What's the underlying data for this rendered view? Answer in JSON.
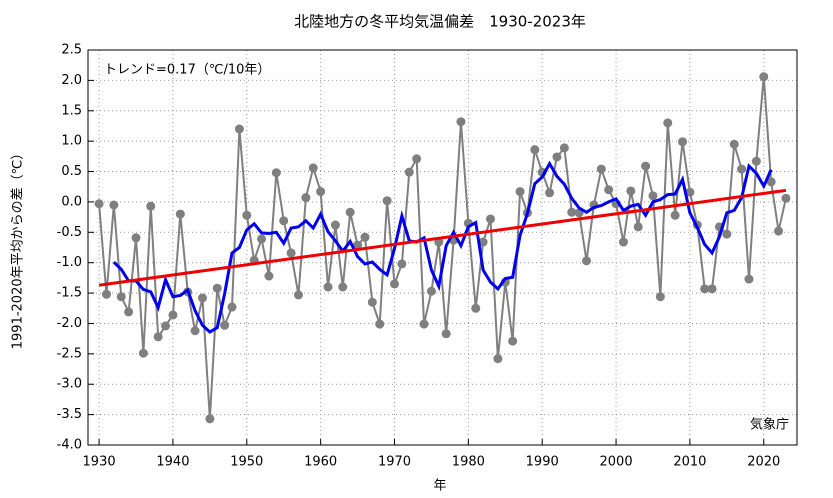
{
  "chart_data": {
    "type": "line",
    "title": "北陸地方の冬平均気温偏差　1930-2023年",
    "x_label": "年",
    "y_label": "1991-2020年平均からの差（℃）",
    "annotations": [
      "トレンド=0.17（℃/10年）",
      "気象庁"
    ],
    "x": [
      1930,
      1931,
      1932,
      1933,
      1934,
      1935,
      1936,
      1937,
      1938,
      1939,
      1940,
      1941,
      1942,
      1943,
      1944,
      1945,
      1946,
      1947,
      1948,
      1949,
      1950,
      1951,
      1952,
      1953,
      1954,
      1955,
      1956,
      1957,
      1958,
      1959,
      1960,
      1961,
      1962,
      1963,
      1964,
      1965,
      1966,
      1967,
      1968,
      1969,
      1970,
      1971,
      1972,
      1973,
      1974,
      1975,
      1976,
      1977,
      1978,
      1979,
      1980,
      1981,
      1982,
      1983,
      1984,
      1985,
      1986,
      1987,
      1988,
      1989,
      1990,
      1991,
      1992,
      1993,
      1994,
      1995,
      1996,
      1997,
      1998,
      1999,
      2000,
      2001,
      2002,
      2003,
      2004,
      2005,
      2006,
      2007,
      2008,
      2009,
      2010,
      2011,
      2012,
      2013,
      2014,
      2015,
      2016,
      2017,
      2018,
      2019,
      2020,
      2021,
      2022,
      2023
    ],
    "series": [
      {
        "color": "#7f7f7f",
        "markers": true,
        "values": [
          -0.03,
          -1.52,
          -0.05,
          -1.56,
          -1.81,
          -0.59,
          -2.49,
          -0.07,
          -2.22,
          -2.04,
          -1.86,
          -0.2,
          -1.48,
          -2.12,
          -1.58,
          -3.57,
          -1.42,
          -2.03,
          -1.73,
          1.2,
          -0.22,
          -0.96,
          -0.61,
          -1.22,
          0.48,
          -0.31,
          -0.84,
          -1.53,
          0.07,
          0.56,
          0.17,
          -1.4,
          -0.38,
          -1.4,
          -0.17,
          -0.71,
          -0.58,
          -1.65,
          -2.01,
          0.02,
          -1.35,
          -1.02,
          0.49,
          0.71,
          -2.01,
          -1.47,
          -0.66,
          -2.17,
          -0.63,
          1.32,
          -0.35,
          -1.75,
          -0.66,
          -0.28,
          -2.58,
          -1.32,
          -2.29,
          0.17,
          -0.18,
          0.86,
          0.49,
          0.15,
          0.74,
          0.89,
          -0.17,
          -0.18,
          -0.97,
          -0.05,
          0.54,
          0.2,
          -0.03,
          -0.66,
          0.18,
          -0.41,
          0.59,
          0.1,
          -1.56,
          1.3,
          -0.22,
          0.99,
          0.16,
          -0.38,
          -1.43,
          -1.43,
          -0.41,
          -0.53,
          0.95,
          0.54,
          -1.27,
          0.67,
          2.06,
          0.33,
          -0.48,
          0.06
        ]
      },
      {
        "color": "#0000ee",
        "markers": false,
        "values": [
          null,
          null,
          -0.99,
          -1.11,
          -1.3,
          -1.3,
          -1.44,
          -1.48,
          -1.74,
          -1.28,
          -1.56,
          -1.54,
          -1.45,
          -1.79,
          -2.03,
          -2.14,
          -2.07,
          -1.51,
          -0.84,
          -0.75,
          -0.46,
          -0.36,
          -0.51,
          -0.52,
          -0.5,
          -0.68,
          -0.43,
          -0.41,
          -0.31,
          -0.43,
          -0.2,
          -0.49,
          -0.64,
          -0.81,
          -0.65,
          -0.9,
          -1.02,
          -0.99,
          -1.11,
          -1.2,
          -0.77,
          -0.23,
          -0.64,
          -0.66,
          -0.59,
          -1.12,
          -1.39,
          -0.72,
          -0.5,
          -0.72,
          -0.41,
          -0.34,
          -1.12,
          -1.32,
          -1.43,
          -1.26,
          -1.24,
          -0.55,
          -0.19,
          0.3,
          0.41,
          0.63,
          0.42,
          0.29,
          0.06,
          -0.1,
          -0.17,
          -0.09,
          -0.06,
          0,
          0.05,
          -0.14,
          -0.07,
          -0.04,
          -0.22,
          0,
          0.04,
          0.12,
          0.13,
          0.37,
          -0.18,
          -0.42,
          -0.7,
          -0.84,
          -0.57,
          -0.18,
          -0.14,
          0.07,
          0.59,
          0.47,
          0.26,
          0.53,
          null,
          null
        ]
      },
      {
        "color": "#ee0000",
        "markers": false,
        "x": [
          1930,
          2023
        ],
        "values": [
          -1.37,
          0.19
        ]
      }
    ],
    "xlim": [
      1928.5,
      2024.5
    ],
    "xticks": [
      1930,
      1940,
      1950,
      1960,
      1970,
      1980,
      1990,
      2000,
      2010,
      2020
    ],
    "ylim": [
      -4,
      2.5
    ],
    "yticks": [
      2.5,
      {
        "value": 2,
        "label": "2.0"
      },
      1.5,
      {
        "value": 1,
        "label": "1.0"
      },
      0.5,
      {
        "value": 0,
        "label": "0.0"
      },
      -0.5,
      {
        "value": -1,
        "label": "-1.0"
      },
      -1.5,
      {
        "value": -2,
        "label": "-2.0"
      },
      -2.5,
      {
        "value": -3,
        "label": "-3.0"
      },
      -3.5,
      {
        "value": -4,
        "label": "-4.0"
      }
    ],
    "grid": true
  }
}
